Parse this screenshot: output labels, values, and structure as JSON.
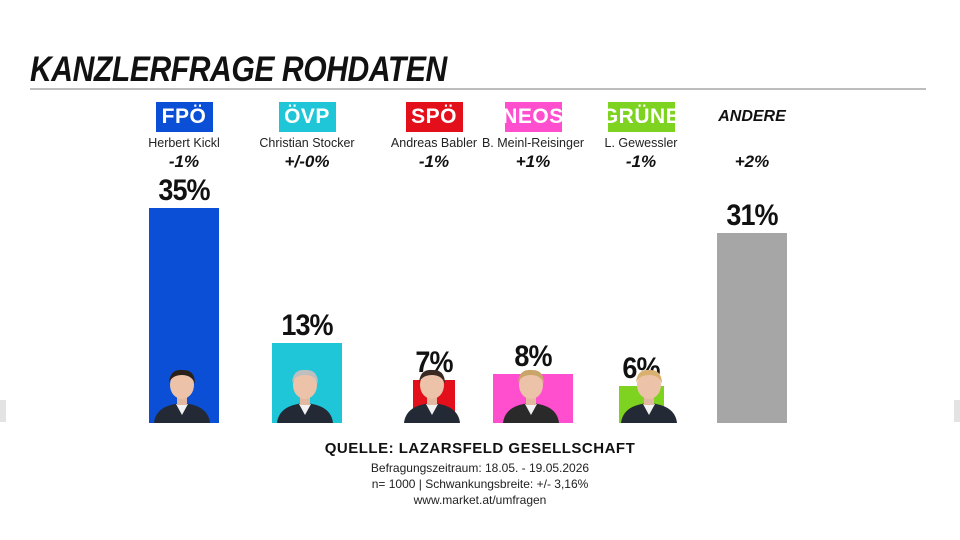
{
  "header": {
    "title": "KANZLERFRAGE ROHDATEN"
  },
  "chart_data": {
    "type": "bar",
    "title": "KANZLERFRAGE ROHDATEN",
    "unit": "%",
    "ylim": [
      0,
      35
    ],
    "categories": [
      "FPÖ",
      "ÖVP",
      "SPÖ",
      "NEOS",
      "GRÜNE",
      "ANDERE"
    ],
    "candidates": [
      "Herbert Kickl",
      "Christian Stocker",
      "Andreas Babler",
      "B. Meinl-Reisinger",
      "L. Gewessler",
      ""
    ],
    "changes": [
      "-1%",
      "+/-0%",
      "-1%",
      "+1%",
      "-1%",
      "+2%"
    ],
    "values": [
      35,
      13,
      7,
      8,
      6,
      31
    ],
    "value_labels": [
      "35%",
      "13%",
      "7%",
      "8%",
      "6%",
      "31%"
    ],
    "colors": [
      "#0a4fd6",
      "#1ec6d7",
      "#e3101c",
      "#ff4fcf",
      "#7ed321",
      "#a6a6a6"
    ],
    "badge_text_color": "#ffffff",
    "has_photo": [
      true,
      true,
      true,
      true,
      true,
      false
    ],
    "grid": false,
    "legend": "none"
  },
  "footer": {
    "source": "QUELLE: LAZARSFELD GESELLSCHAFT",
    "period": "Befragungszeitraum: 18.05. - 19.05.2026",
    "sample": "n= 1000 | Schwankungsbreite: +/- 3,16%",
    "url": "www.market.at/umfragen"
  }
}
